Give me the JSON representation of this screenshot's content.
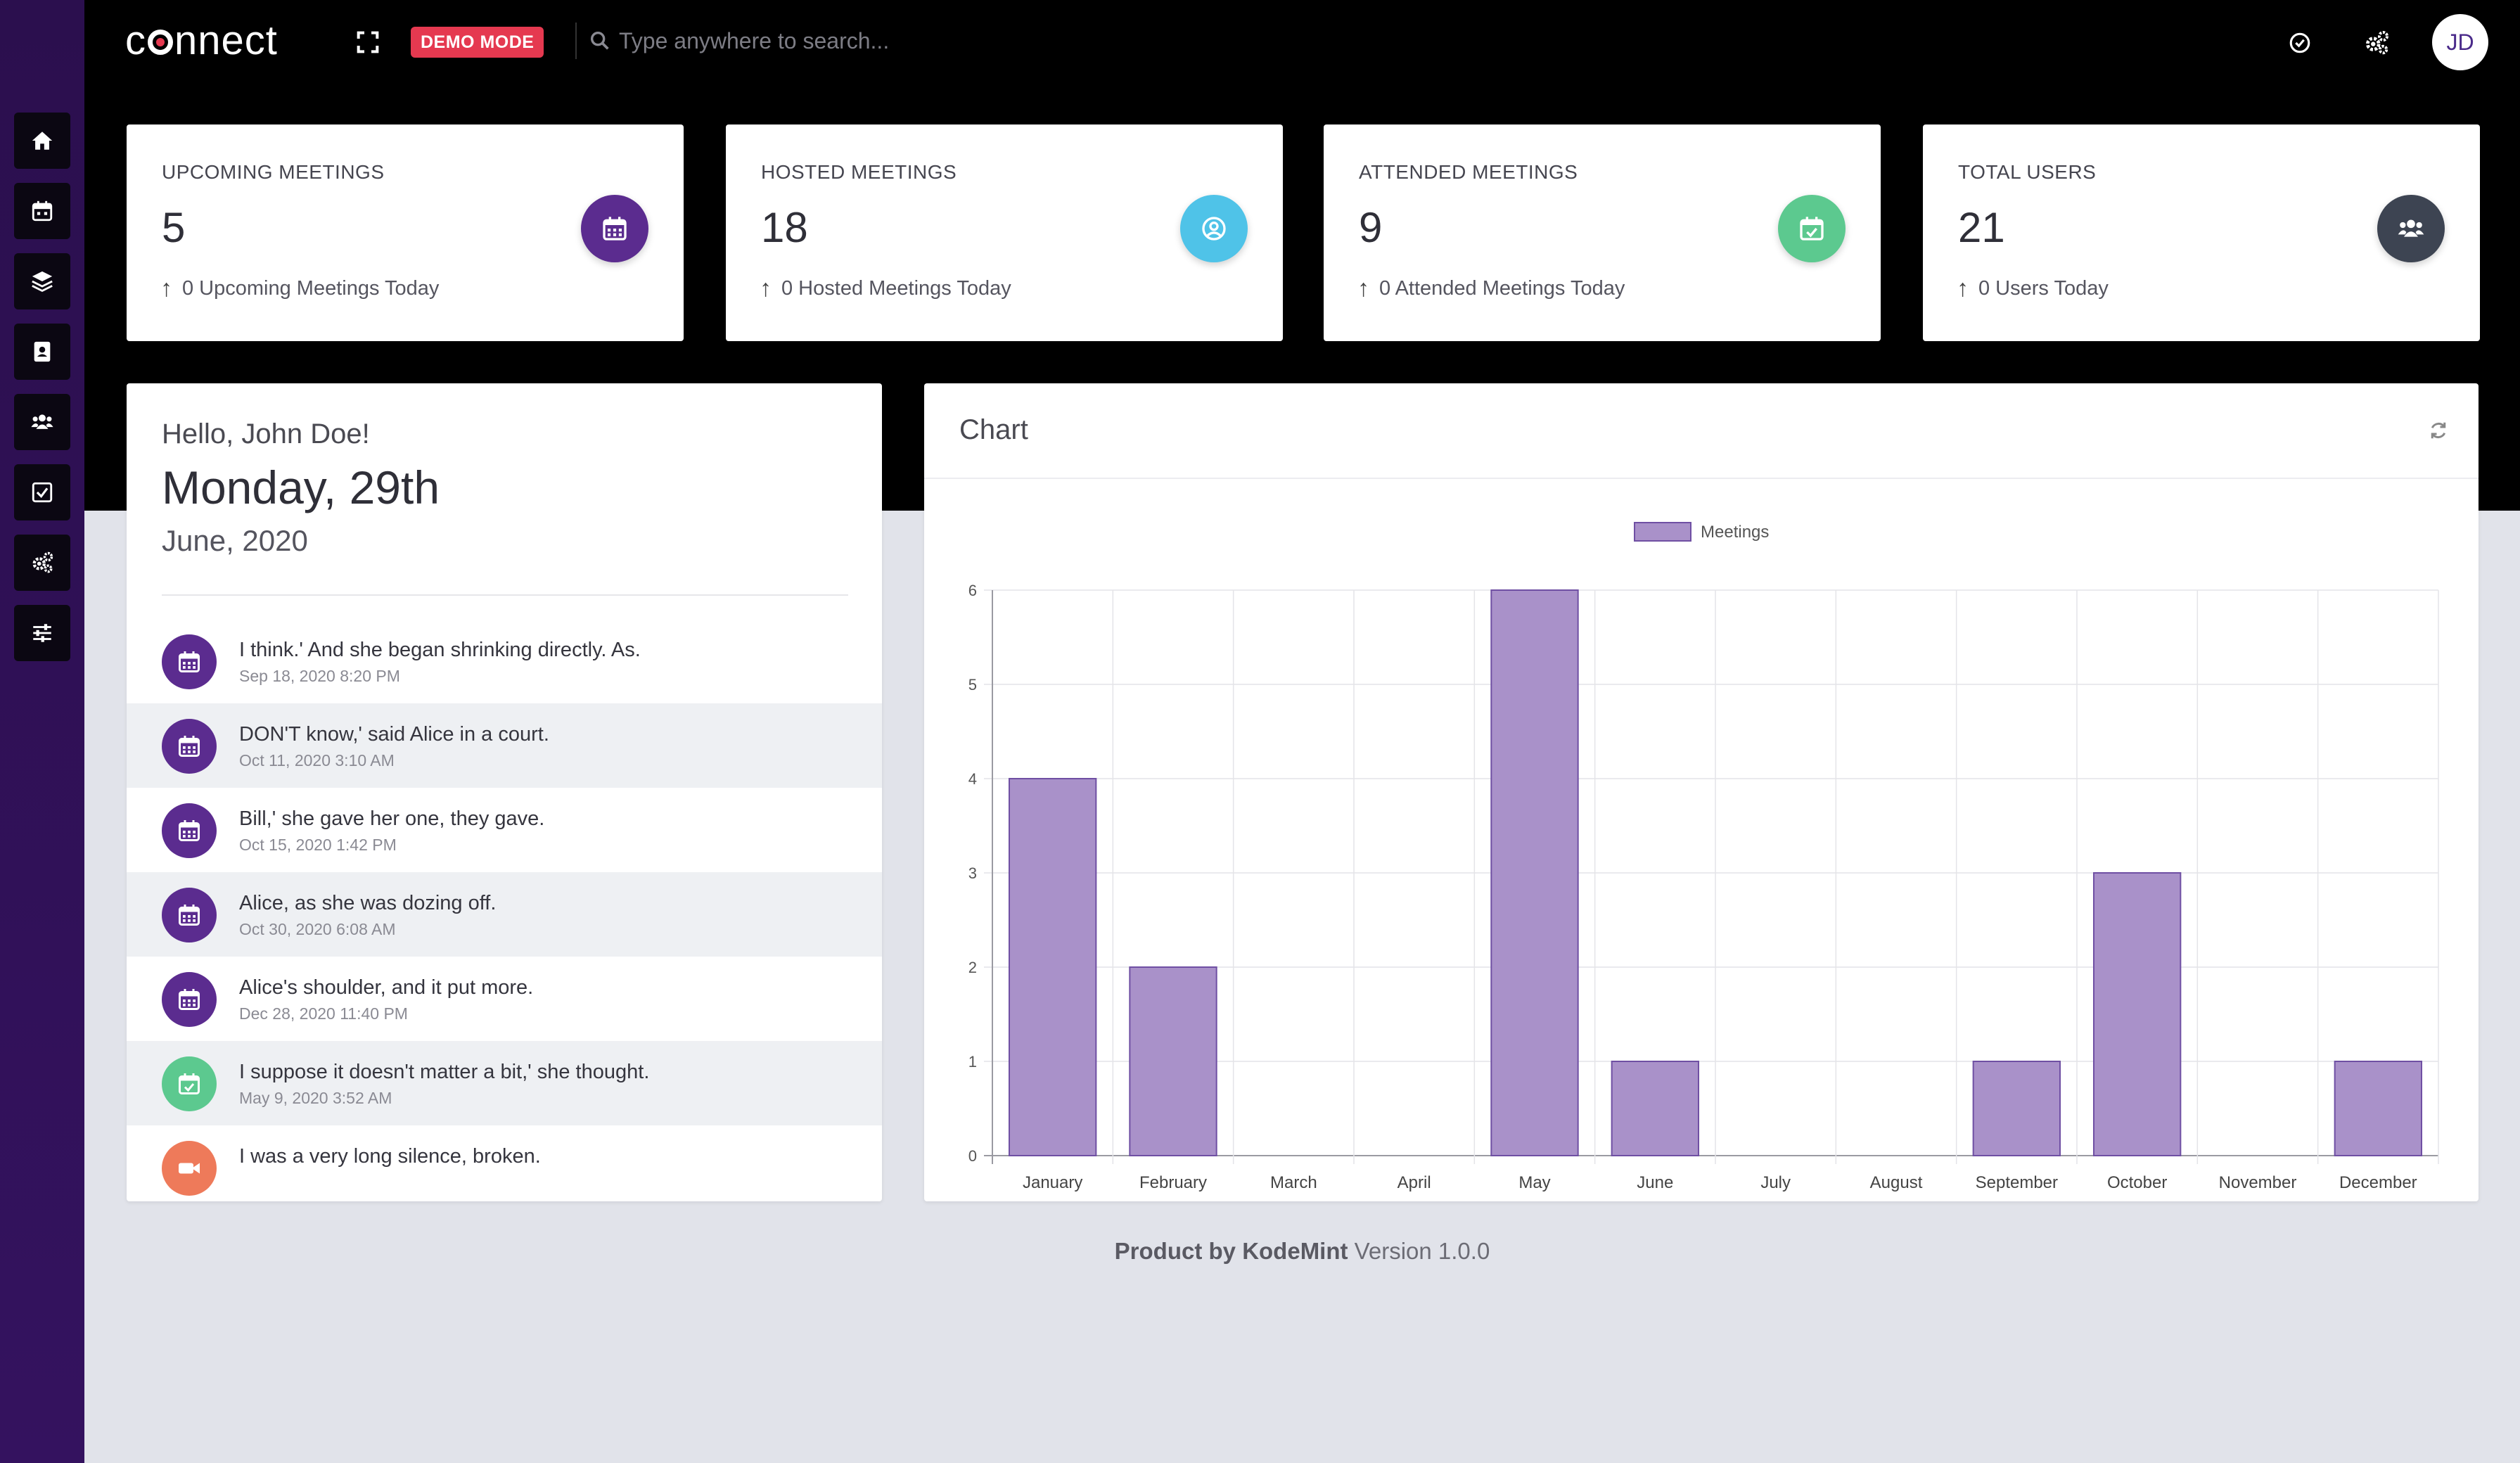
{
  "app": {
    "logo_text_prefix": "c",
    "logo_text_suffix": "nnect"
  },
  "header": {
    "demo_badge": "DEMO MODE",
    "search_placeholder": "Type anywhere to search...",
    "avatar_initials": "JD"
  },
  "sidebar": {
    "items": [
      {
        "name": "home-icon"
      },
      {
        "name": "calendar-icon"
      },
      {
        "name": "layers-icon"
      },
      {
        "name": "contact-book-icon"
      },
      {
        "name": "users-icon"
      },
      {
        "name": "check-square-icon"
      },
      {
        "name": "gears-icon"
      },
      {
        "name": "sliders-icon"
      }
    ]
  },
  "stats": [
    {
      "title": "UPCOMING MEETINGS",
      "value": "5",
      "sub": "0 Upcoming Meetings Today",
      "color": "#5b2c8f",
      "icon": "calendar-icon"
    },
    {
      "title": "HOSTED MEETINGS",
      "value": "18",
      "sub": "0 Hosted Meetings Today",
      "color": "#4fc3e8",
      "icon": "user-circle-icon"
    },
    {
      "title": "ATTENDED MEETINGS",
      "value": "9",
      "sub": "0 Attended Meetings Today",
      "color": "#5cc98f",
      "icon": "calendar-check-icon"
    },
    {
      "title": "TOTAL USERS",
      "value": "21",
      "sub": "0 Users Today",
      "color": "#3d4452",
      "icon": "users-icon"
    }
  ],
  "greeting": {
    "hello": "Hello, John Doe!",
    "day": "Monday, 29th",
    "month_year": "June, 2020"
  },
  "feed": [
    {
      "text": "I think.' And she began shrinking directly. As.",
      "time": "Sep 18, 2020 8:20 PM",
      "icon": "calendar-icon",
      "color": "#5b2c8f"
    },
    {
      "text": "DON'T know,' said Alice in a court.",
      "time": "Oct 11, 2020 3:10 AM",
      "icon": "calendar-icon",
      "color": "#5b2c8f"
    },
    {
      "text": "Bill,' she gave her one, they gave.",
      "time": "Oct 15, 2020 1:42 PM",
      "icon": "calendar-icon",
      "color": "#5b2c8f"
    },
    {
      "text": "Alice, as she was dozing off.",
      "time": "Oct 30, 2020 6:08 AM",
      "icon": "calendar-icon",
      "color": "#5b2c8f"
    },
    {
      "text": "Alice's shoulder, and it put more.",
      "time": "Dec 28, 2020 11:40 PM",
      "icon": "calendar-icon",
      "color": "#5b2c8f"
    },
    {
      "text": "I suppose it doesn't matter a bit,' she thought.",
      "time": "May 9, 2020 3:52 AM",
      "icon": "calendar-check-icon",
      "color": "#5cc98f"
    },
    {
      "text": "I was a very long silence, broken.",
      "time": "",
      "icon": "video-icon",
      "color": "#ee7a5a"
    }
  ],
  "chart_panel": {
    "title": "Chart"
  },
  "chart_data": {
    "type": "bar",
    "categories": [
      "January",
      "February",
      "March",
      "April",
      "May",
      "June",
      "July",
      "August",
      "September",
      "October",
      "November",
      "December"
    ],
    "series": [
      {
        "name": "Meetings",
        "values": [
          4,
          2,
          0,
          0,
          6,
          1,
          0,
          0,
          1,
          3,
          0,
          1
        ],
        "color": "#a991c9",
        "stroke": "#6f4fa3"
      }
    ],
    "ylim": [
      0,
      6
    ],
    "yticks": [
      0,
      1,
      2,
      3,
      4,
      5,
      6
    ],
    "grid": true,
    "legend": "top-center"
  },
  "footer": {
    "product_by": "Product by KodeMint",
    "version": "Version 1.0.0"
  }
}
